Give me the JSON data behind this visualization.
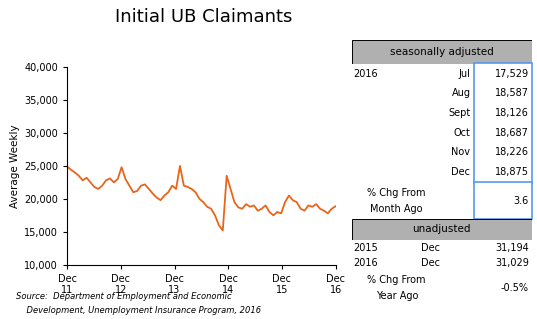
{
  "title": "Initial UB Claimants",
  "ylabel": "Average Weekly",
  "ylim": [
    10000,
    40000
  ],
  "yticks": [
    10000,
    15000,
    20000,
    25000,
    30000,
    35000,
    40000
  ],
  "line_color": "#E8651A",
  "line_width": 1.3,
  "source_text1": "Source:  Department of Employment and Economic",
  "source_text2": "    Development, Unemployment Insurance Program, 2016",
  "seasonally_adjusted_label": "seasonally adjusted",
  "unadjusted_label": "unadjusted",
  "sa_year": "2016",
  "sa_months": [
    "Jul",
    "Aug",
    "Sept",
    "Oct",
    "Nov",
    "Dec"
  ],
  "sa_values": [
    "17,529",
    "18,587",
    "18,126",
    "18,687",
    "18,226",
    "18,875"
  ],
  "sa_pct_chg_value": "3.6",
  "unadj_rows": [
    {
      "year": "2015",
      "month": "Dec",
      "value": "31,194"
    },
    {
      "year": "2016",
      "month": "Dec",
      "value": "31,029"
    }
  ],
  "unadj_pct_chg_value": "-0.5%",
  "x_tick_labels": [
    "Dec\n11",
    "Dec\n12",
    "Dec\n13",
    "Dec\n14",
    "Dec\n15",
    "Dec\n16"
  ],
  "line_data": [
    24900,
    24400,
    24000,
    23500,
    22800,
    23200,
    22500,
    21800,
    21500,
    22000,
    22800,
    23100,
    22500,
    23000,
    24800,
    23000,
    22000,
    21000,
    21200,
    22000,
    22200,
    21500,
    20800,
    20200,
    19800,
    20500,
    21000,
    22000,
    21500,
    25000,
    22000,
    21800,
    21500,
    21000,
    20000,
    19500,
    18800,
    18500,
    17500,
    16000,
    15200,
    23500,
    21500,
    19500,
    18700,
    18500,
    19200,
    18800,
    19000,
    18200,
    18500,
    19000,
    18000,
    17500,
    18000,
    17800,
    19500,
    20500,
    19800,
    19500,
    18500,
    18200,
    19000,
    18800,
    19200,
    18500,
    18200,
    17800,
    18500,
    18875
  ]
}
